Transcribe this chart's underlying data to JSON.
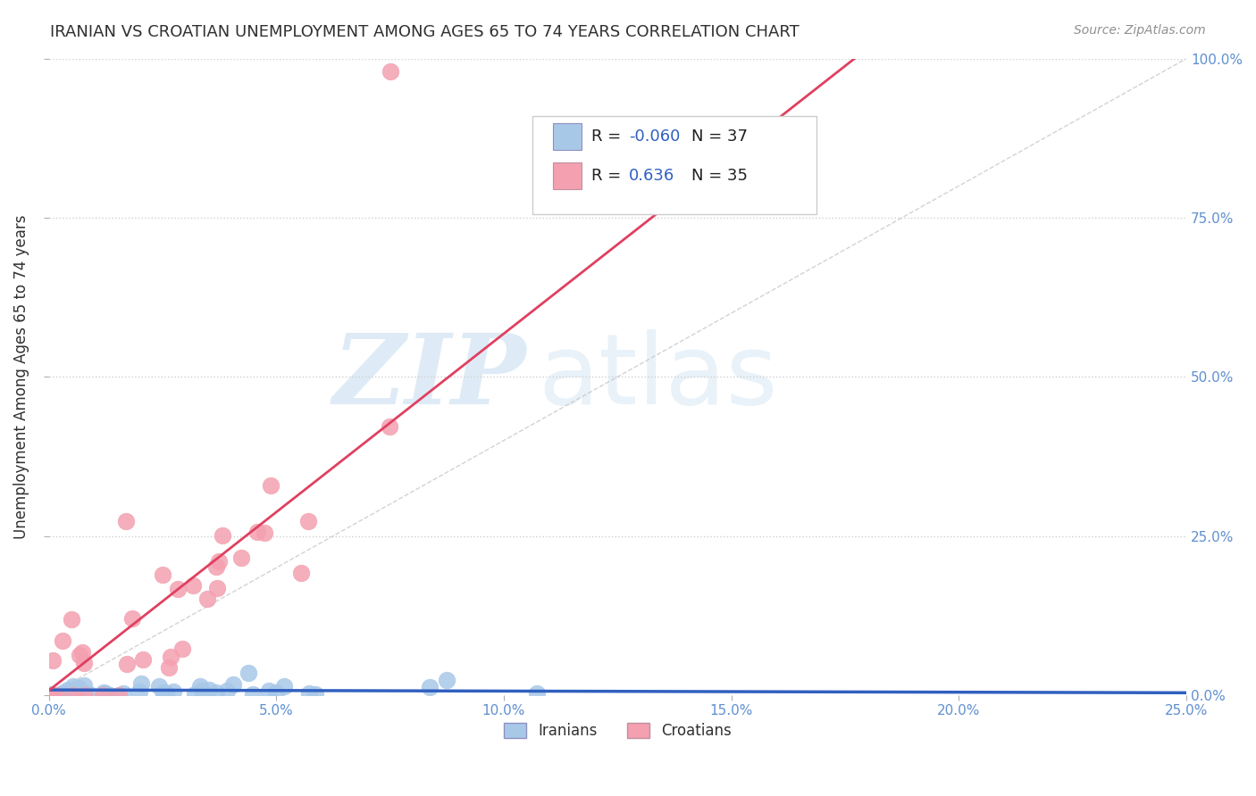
{
  "title": "IRANIAN VS CROATIAN UNEMPLOYMENT AMONG AGES 65 TO 74 YEARS CORRELATION CHART",
  "source": "Source: ZipAtlas.com",
  "ylabel": "Unemployment Among Ages 65 to 74 years",
  "xlim": [
    0.0,
    0.25
  ],
  "ylim": [
    0.0,
    1.0
  ],
  "ytick_labels": [
    "0.0%",
    "25.0%",
    "50.0%",
    "75.0%",
    "100.0%"
  ],
  "xtick_labels": [
    "0.0%",
    "5.0%",
    "10.0%",
    "15.0%",
    "20.0%",
    "25.0%"
  ],
  "legend_iranians_R": "-0.060",
  "legend_iranians_N": "37",
  "legend_croatians_R": "0.636",
  "legend_croatians_N": "35",
  "blue_color": "#a8c8e8",
  "pink_color": "#f4a0b0",
  "blue_line_color": "#3060c0",
  "pink_line_color": "#e04060",
  "watermark_zip": "ZIP",
  "watermark_atlas": "atlas",
  "title_color": "#303030",
  "axis_label_color": "#303030",
  "tick_color": "#6090d0",
  "grid_color": "#d0d0d0"
}
